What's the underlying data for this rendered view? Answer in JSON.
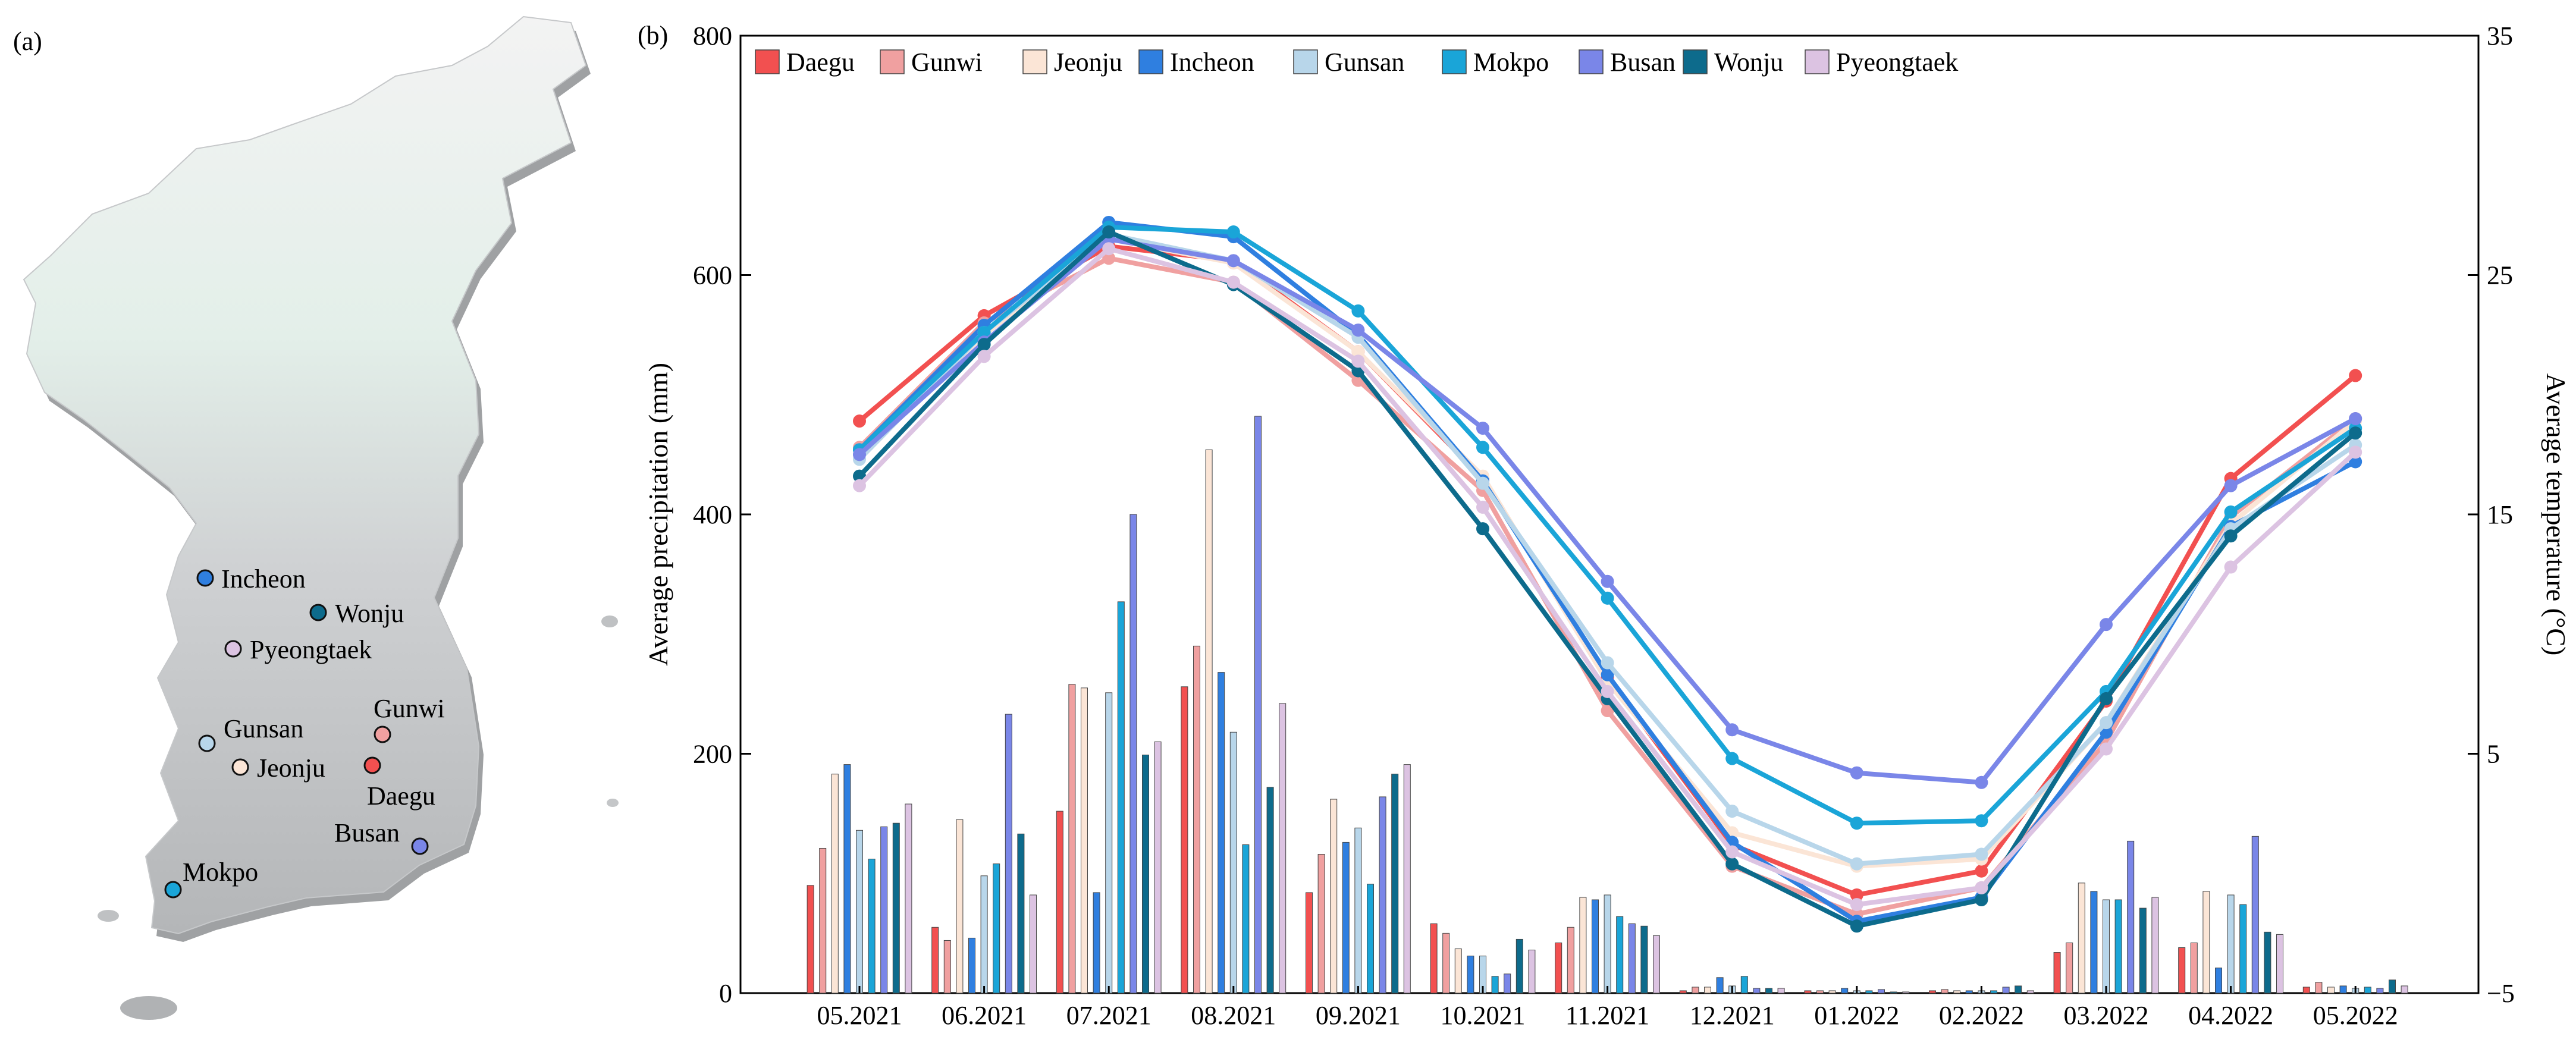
{
  "panel_a": {
    "label": "(a)",
    "cities": [
      {
        "name": "Incheon",
        "color": "#2f7fe0"
      },
      {
        "name": "Wonju",
        "color": "#0d6b8c"
      },
      {
        "name": "Pyeongtaek",
        "color": "#dcc3e2"
      },
      {
        "name": "Gunwi",
        "color": "#f0a0a0"
      },
      {
        "name": "Gunsan",
        "color": "#b8d6ea"
      },
      {
        "name": "Jeonju",
        "color": "#fbe5d6"
      },
      {
        "name": "Daegu",
        "color": "#f25050"
      },
      {
        "name": "Busan",
        "color": "#7a86e8"
      },
      {
        "name": "Mokpo",
        "color": "#1aa5d8"
      }
    ]
  },
  "chart_data": {
    "type": "bar+line",
    "panel_label": "(b)",
    "ylabel": "Average precipitation (mm)",
    "y2label": "Average temperature (°C)",
    "ylim": [
      0,
      800
    ],
    "yticks": [
      "0",
      "200",
      "400",
      "600",
      "800"
    ],
    "y2lim": [
      -5,
      35
    ],
    "y2ticks": [
      "−5",
      "5",
      "15",
      "25",
      "35"
    ],
    "categories": [
      "05.2021",
      "06.2021",
      "07.2021",
      "08.2021",
      "09.2021",
      "10.2021",
      "11.2021",
      "12.2021",
      "01.2022",
      "02.2022",
      "03.2022",
      "04.2022",
      "05.2022"
    ],
    "series": [
      {
        "name": "Daegu",
        "color": "#f25050",
        "precipitation": [
          90,
          55,
          152,
          256,
          84,
          58,
          42,
          2,
          2,
          2,
          34,
          38,
          5
        ],
        "temperature": [
          18.9,
          23.3,
          26.2,
          25.6,
          21.8,
          16.5,
          8.2,
          1.2,
          -0.9,
          0.1,
          7.2,
          16.5,
          20.8
        ]
      },
      {
        "name": "Gunwi",
        "color": "#f0a0a0",
        "precipitation": [
          121,
          44,
          258,
          290,
          116,
          50,
          55,
          5,
          2,
          3,
          42,
          42,
          9
        ],
        "temperature": [
          17.8,
          23.0,
          25.7,
          24.7,
          20.6,
          16.0,
          6.8,
          0.3,
          -1.7,
          -0.6,
          5.5,
          14.9,
          19.0
        ]
      },
      {
        "name": "Jeonju",
        "color": "#fbe5d6",
        "precipitation": [
          183,
          145,
          255,
          454,
          162,
          37,
          80,
          5,
          2,
          2,
          92,
          85,
          5
        ],
        "temperature": [
          17.5,
          22.5,
          26.5,
          25.5,
          21.8,
          16.6,
          8.0,
          1.7,
          0.3,
          0.6,
          6.3,
          14.6,
          18.9
        ]
      },
      {
        "name": "Incheon",
        "color": "#2f7fe0",
        "precipitation": [
          191,
          46,
          84,
          268,
          126,
          31,
          78,
          13,
          4,
          2,
          85,
          21,
          6
        ],
        "temperature": [
          17.7,
          22.9,
          27.2,
          26.6,
          22.5,
          16.4,
          8.3,
          1.3,
          -2.0,
          -1.0,
          5.9,
          14.5,
          17.2
        ]
      },
      {
        "name": "Gunsan",
        "color": "#b8d6ea",
        "precipitation": [
          136,
          98,
          251,
          218,
          138,
          31,
          82,
          6,
          2,
          2,
          78,
          82,
          4
        ],
        "temperature": [
          17.3,
          22.6,
          26.7,
          25.6,
          22.4,
          16.3,
          8.8,
          2.6,
          0.4,
          0.8,
          6.3,
          14.4,
          17.9
        ]
      },
      {
        "name": "Mokpo",
        "color": "#1aa5d8",
        "precipitation": [
          112,
          108,
          327,
          124,
          91,
          14,
          64,
          14,
          2,
          2,
          78,
          74,
          5
        ],
        "temperature": [
          17.7,
          22.6,
          27.0,
          26.8,
          23.5,
          17.8,
          11.5,
          4.8,
          2.1,
          2.2,
          7.6,
          15.1,
          18.6
        ]
      },
      {
        "name": "Busan",
        "color": "#7a86e8",
        "precipitation": [
          139,
          233,
          400,
          482,
          164,
          16,
          58,
          4,
          3,
          5,
          127,
          131,
          4
        ],
        "temperature": [
          17.5,
          22.2,
          26.5,
          25.6,
          22.7,
          18.6,
          12.2,
          6.0,
          4.2,
          3.8,
          10.4,
          16.2,
          19.0
        ]
      },
      {
        "name": "Wonju",
        "color": "#0d6b8c",
        "precipitation": [
          142,
          133,
          199,
          172,
          183,
          45,
          56,
          4,
          1,
          6,
          71,
          51,
          11
        ],
        "temperature": [
          16.6,
          22.1,
          26.8,
          24.6,
          21.0,
          14.4,
          7.3,
          0.4,
          -2.2,
          -1.1,
          7.3,
          14.1,
          18.4
        ]
      },
      {
        "name": "Pyeongtaek",
        "color": "#dcc3e2",
        "precipitation": [
          158,
          82,
          210,
          242,
          191,
          36,
          48,
          4,
          1,
          2,
          80,
          49,
          6
        ],
        "temperature": [
          16.2,
          21.6,
          26.1,
          24.7,
          21.4,
          15.3,
          7.6,
          0.9,
          -1.3,
          -0.6,
          5.2,
          12.8,
          17.6
        ]
      }
    ]
  }
}
